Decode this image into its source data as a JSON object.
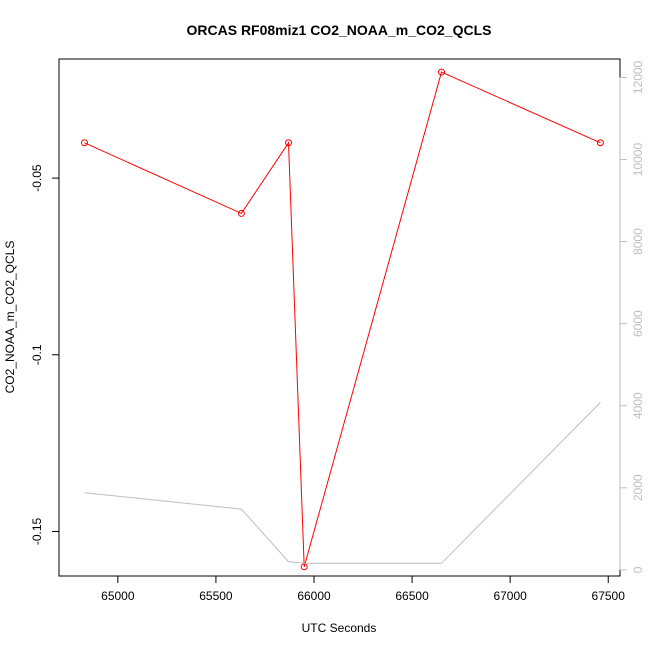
{
  "chart_data": {
    "type": "line",
    "title": "ORCAS RF08miz1 CO2_NOAA_m_CO2_QCLS",
    "xlabel": "UTC Seconds",
    "ylabel": "CO2_NOAA_m_CO2_QCLS",
    "y2label": "",
    "xlim": [
      64700,
      67560
    ],
    "ylim": [
      -0.1626,
      -0.0163
    ],
    "y2lim": [
      -150,
      12450
    ],
    "x_ticks": [
      65000,
      65500,
      66000,
      66500,
      67000,
      67500
    ],
    "y_ticks": [
      -0.15,
      -0.1,
      -0.05
    ],
    "y2_ticks": [
      0,
      2000,
      4000,
      6000,
      8000,
      10000,
      12000
    ],
    "series": [
      {
        "axis": "left",
        "color": "#ff0000",
        "markers": "open-circle",
        "x": [
          64830,
          65630,
          65870,
          65950,
          66650,
          67460
        ],
        "y": [
          -0.04,
          -0.06,
          -0.04,
          -0.16,
          -0.02,
          -0.04
        ]
      },
      {
        "axis": "right",
        "color": "#bebebe",
        "markers": "none",
        "x": [
          64830,
          65630,
          65870,
          65950,
          66650,
          67460
        ],
        "y": [
          1880,
          1480,
          200,
          160,
          160,
          4080
        ]
      }
    ],
    "grid": false,
    "legend": "none"
  }
}
